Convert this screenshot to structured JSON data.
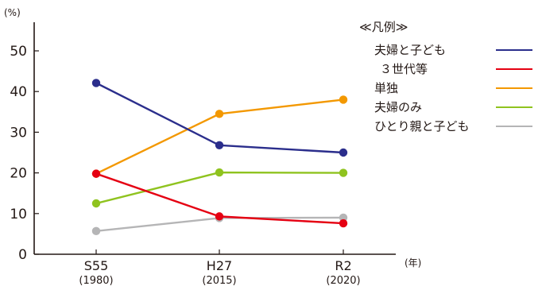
{
  "chart_data": {
    "type": "line",
    "y_unit": "(%)",
    "x_unit": "(年)",
    "legend_title": "≪凡例≫",
    "legend_position": "top-right",
    "categories": [
      "S55",
      "H27",
      "R2"
    ],
    "category_sublabels": [
      "(1980)",
      "(2015)",
      "(2020)"
    ],
    "ylim": [
      0,
      50
    ],
    "yticks": [
      "0",
      "10",
      "20",
      "30",
      "40",
      "50"
    ],
    "grid": false,
    "series": [
      {
        "name": "夫婦と子ども",
        "color": "#2b2e8c",
        "values": [
          42.1,
          26.8,
          25.0
        ]
      },
      {
        "name": "３世代等",
        "color": "#e50012",
        "values": [
          19.8,
          9.3,
          7.6
        ]
      },
      {
        "name": "単独",
        "color": "#f39800",
        "values": [
          19.8,
          34.5,
          38.0
        ]
      },
      {
        "name": "夫婦のみ",
        "color": "#8fc31f",
        "values": [
          12.5,
          20.1,
          20.0
        ]
      },
      {
        "name": "ひとり親と子ども",
        "color": "#b5b5b6",
        "values": [
          5.7,
          8.9,
          9.0
        ]
      }
    ]
  }
}
